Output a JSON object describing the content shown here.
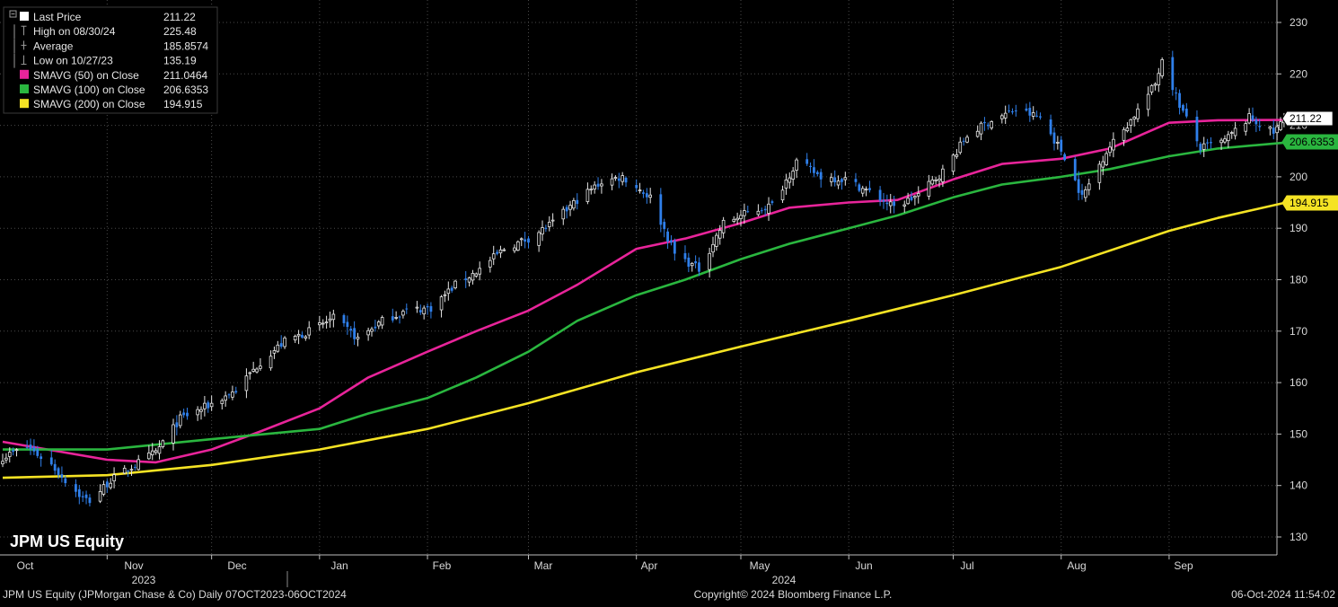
{
  "chart_data": {
    "type": "candlestick",
    "ticker_label": "JPM US Equity",
    "legend": [
      {
        "label": "Last Price",
        "value": "211.22",
        "marker": "square",
        "color": "#ffffff"
      },
      {
        "label": "High on 08/30/24",
        "value": "225.48",
        "marker": "high-icon",
        "color": "#9a9a9a"
      },
      {
        "label": "Average",
        "value": "185.8574",
        "marker": "average-icon",
        "color": "#9a9a9a"
      },
      {
        "label": "Low on 10/27/23",
        "value": "135.19",
        "marker": "low-icon",
        "color": "#9a9a9a"
      },
      {
        "label": "SMAVG (50)  on Close",
        "value": "211.0464",
        "marker": "square",
        "color": "#e8249a"
      },
      {
        "label": "SMAVG (100)  on Close",
        "value": "206.6353",
        "marker": "square",
        "color": "#2ab63f"
      },
      {
        "label": "SMAVG (200)  on Close",
        "value": "194.915",
        "marker": "square",
        "color": "#f5e324"
      }
    ],
    "y_axis": {
      "min": 127,
      "max": 233,
      "ticks": [
        130,
        140,
        150,
        160,
        170,
        180,
        190,
        200,
        210,
        220,
        230
      ],
      "position": "right"
    },
    "x_axis": {
      "months": [
        "Oct",
        "Nov",
        "Dec",
        "Jan",
        "Feb",
        "Mar",
        "Apr",
        "May",
        "Jun",
        "Jul",
        "Aug",
        "Sep"
      ],
      "years": [
        "2023",
        "2024"
      ],
      "range": [
        "2023-10-07",
        "2024-10-06"
      ]
    },
    "price_series": {
      "name": "Last Price",
      "up_color": "#ffffff",
      "down_color": "#2f7fea",
      "close_points": [
        [
          "2023-10-02",
          145.5
        ],
        [
          "2023-10-09",
          147.5
        ],
        [
          "2023-10-16",
          144
        ],
        [
          "2023-10-20",
          141
        ],
        [
          "2023-10-25",
          137.5
        ],
        [
          "2023-10-27",
          137
        ],
        [
          "2023-11-02",
          141
        ],
        [
          "2023-11-09",
          144
        ],
        [
          "2023-11-15",
          146.5
        ],
        [
          "2023-11-22",
          153
        ],
        [
          "2023-11-30",
          155.5
        ],
        [
          "2023-12-08",
          158.5
        ],
        [
          "2023-12-15",
          164
        ],
        [
          "2023-12-22",
          168
        ],
        [
          "2023-12-29",
          170
        ],
        [
          "2024-01-05",
          172.5
        ],
        [
          "2024-01-12",
          168.5
        ],
        [
          "2024-01-19",
          172
        ],
        [
          "2024-01-26",
          174
        ],
        [
          "2024-02-02",
          174.5
        ],
        [
          "2024-02-09",
          179
        ],
        [
          "2024-02-16",
          182
        ],
        [
          "2024-02-23",
          186
        ],
        [
          "2024-03-01",
          188
        ],
        [
          "2024-03-08",
          191
        ],
        [
          "2024-03-15",
          195.5
        ],
        [
          "2024-03-22",
          199
        ],
        [
          "2024-03-28",
          200
        ],
        [
          "2024-04-05",
          196
        ],
        [
          "2024-04-12",
          185
        ],
        [
          "2024-04-19",
          182
        ],
        [
          "2024-04-26",
          191
        ],
        [
          "2024-05-03",
          193
        ],
        [
          "2024-05-10",
          194.5
        ],
        [
          "2024-05-17",
          203
        ],
        [
          "2024-05-24",
          200
        ],
        [
          "2024-05-31",
          199.5
        ],
        [
          "2024-06-07",
          197
        ],
        [
          "2024-06-14",
          194
        ],
        [
          "2024-06-21",
          196.5
        ],
        [
          "2024-06-28",
          201
        ],
        [
          "2024-07-05",
          208
        ],
        [
          "2024-07-12",
          211
        ],
        [
          "2024-07-19",
          213
        ],
        [
          "2024-07-26",
          211.5
        ],
        [
          "2024-08-02",
          204
        ],
        [
          "2024-08-07",
          196
        ],
        [
          "2024-08-14",
          205
        ],
        [
          "2024-08-21",
          211
        ],
        [
          "2024-08-28",
          218
        ],
        [
          "2024-08-30",
          223
        ],
        [
          "2024-09-04",
          214
        ],
        [
          "2024-09-10",
          205.5
        ],
        [
          "2024-09-17",
          207
        ],
        [
          "2024-09-24",
          211.5
        ],
        [
          "2024-10-01",
          208.5
        ],
        [
          "2024-10-04",
          211.22
        ]
      ]
    },
    "series": [
      {
        "name": "SMAVG (50)  on Close",
        "color": "#e8249a",
        "points": [
          [
            "2023-10-02",
            148.5
          ],
          [
            "2023-11-01",
            145
          ],
          [
            "2023-11-15",
            144.5
          ],
          [
            "2023-12-01",
            147
          ],
          [
            "2023-12-15",
            150.5
          ],
          [
            "2024-01-01",
            155
          ],
          [
            "2024-01-15",
            161
          ],
          [
            "2024-02-01",
            166
          ],
          [
            "2024-02-15",
            170
          ],
          [
            "2024-03-01",
            174
          ],
          [
            "2024-03-15",
            179
          ],
          [
            "2024-04-01",
            186
          ],
          [
            "2024-04-15",
            188
          ],
          [
            "2024-05-01",
            191
          ],
          [
            "2024-05-15",
            194
          ],
          [
            "2024-06-01",
            195
          ],
          [
            "2024-06-15",
            195.5
          ],
          [
            "2024-07-01",
            199.5
          ],
          [
            "2024-07-15",
            202.5
          ],
          [
            "2024-08-01",
            203.5
          ],
          [
            "2024-08-15",
            205.5
          ],
          [
            "2024-09-01",
            210.5
          ],
          [
            "2024-09-15",
            211
          ],
          [
            "2024-10-04",
            211.05
          ]
        ]
      },
      {
        "name": "SMAVG (100)  on Close",
        "color": "#2ab63f",
        "points": [
          [
            "2023-10-02",
            147
          ],
          [
            "2023-11-01",
            147
          ],
          [
            "2023-12-01",
            149
          ],
          [
            "2024-01-01",
            151
          ],
          [
            "2024-01-15",
            154
          ],
          [
            "2024-02-01",
            157
          ],
          [
            "2024-02-15",
            161
          ],
          [
            "2024-03-01",
            166
          ],
          [
            "2024-03-15",
            172
          ],
          [
            "2024-04-01",
            177
          ],
          [
            "2024-04-15",
            180
          ],
          [
            "2024-05-01",
            184
          ],
          [
            "2024-05-15",
            187
          ],
          [
            "2024-06-01",
            190
          ],
          [
            "2024-06-15",
            192.5
          ],
          [
            "2024-07-01",
            196
          ],
          [
            "2024-07-15",
            198.5
          ],
          [
            "2024-08-01",
            200
          ],
          [
            "2024-08-15",
            201.5
          ],
          [
            "2024-09-01",
            204
          ],
          [
            "2024-09-15",
            205.5
          ],
          [
            "2024-10-04",
            206.64
          ]
        ]
      },
      {
        "name": "SMAVG (200)  on Close",
        "color": "#f5e324",
        "points": [
          [
            "2023-10-02",
            141.5
          ],
          [
            "2023-11-01",
            142
          ],
          [
            "2023-12-01",
            144
          ],
          [
            "2024-01-01",
            147
          ],
          [
            "2024-02-01",
            151
          ],
          [
            "2024-03-01",
            156
          ],
          [
            "2024-04-01",
            162
          ],
          [
            "2024-05-01",
            167
          ],
          [
            "2024-06-01",
            172
          ],
          [
            "2024-07-01",
            177
          ],
          [
            "2024-08-01",
            182.5
          ],
          [
            "2024-09-01",
            189.5
          ],
          [
            "2024-09-15",
            192
          ],
          [
            "2024-10-04",
            194.92
          ]
        ]
      }
    ],
    "value_tags": [
      {
        "label": "211.22",
        "value": 211.22,
        "bg": "#ffffff",
        "fg": "#000000",
        "border": "#000000"
      },
      {
        "label": "206.6353",
        "value": 206.6353,
        "bg": "#2ab63f",
        "fg": "#000000",
        "border": "#2ab63f"
      },
      {
        "label": "194.915",
        "value": 194.915,
        "bg": "#f5e324",
        "fg": "#000000",
        "border": "#f5e324"
      }
    ],
    "grid": true
  },
  "footer": {
    "left": "JPM US Equity (JPMorgan Chase & Co)  Daily 07OCT2023-06OCT2024",
    "center": "Copyright© 2024 Bloomberg Finance L.P.",
    "right": "06-Oct-2024 11:54:02"
  }
}
